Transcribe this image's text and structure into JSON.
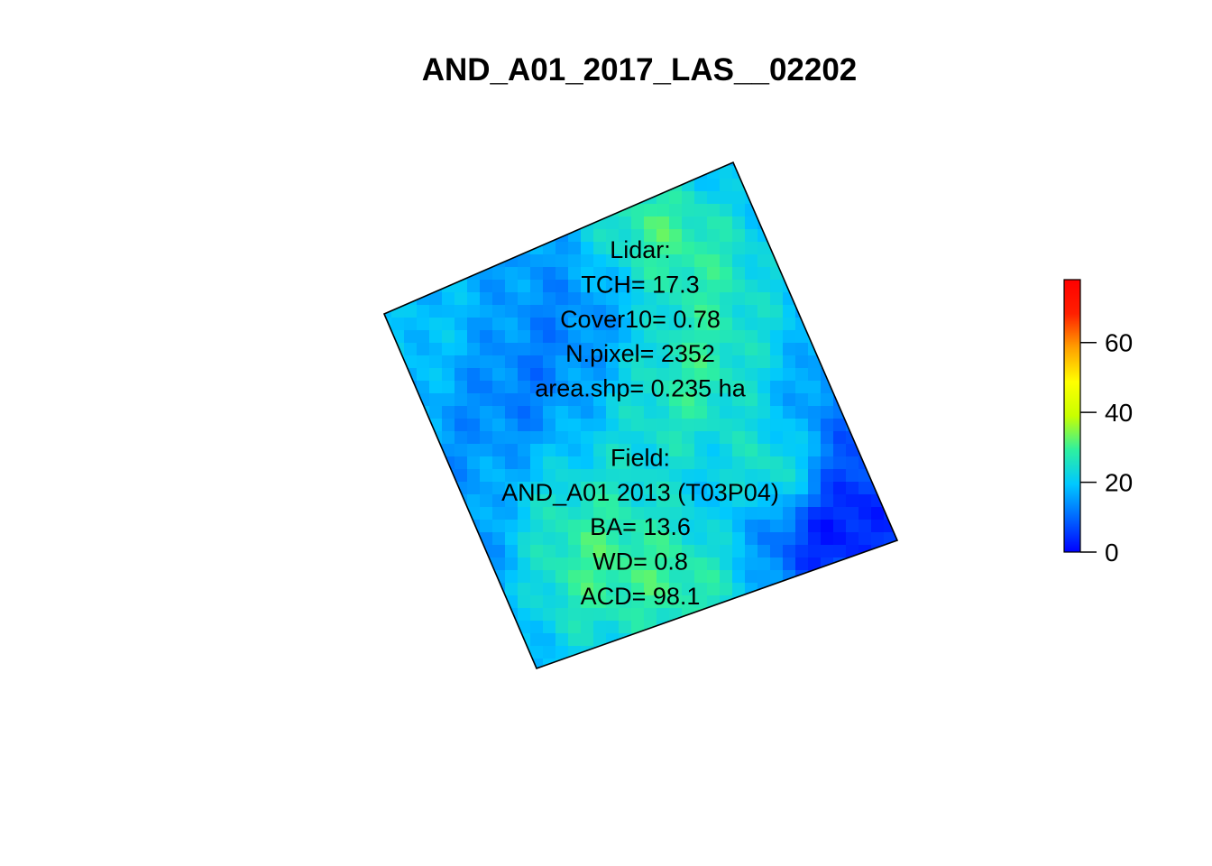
{
  "chart_data": {
    "type": "heatmap",
    "title": "AND_A01_2017_LAS__02202",
    "annotations": {
      "lidar": [
        "Lidar:",
        "TCH= 17.3",
        "Cover10= 0.78",
        "N.pixel= 2352",
        "area.shp= 0.235 ha"
      ],
      "field": [
        "Field:",
        "AND_A01 2013 (T03P04)",
        "BA= 13.6",
        "WD= 0.8",
        "ACD= 98.1"
      ]
    },
    "colorbar": {
      "range": [
        0,
        78
      ],
      "ticks": [
        0,
        20,
        40,
        60
      ],
      "tick_labels": [
        "0",
        "20",
        "40",
        "60"
      ],
      "colors": [
        "#0000ff",
        "#0066ff",
        "#00c8ff",
        "#2ef0a0",
        "#c8ff00",
        "#ffff00",
        "#ffa000",
        "#ff2000",
        "#ff0000"
      ]
    },
    "grid": false,
    "legend": "right"
  }
}
